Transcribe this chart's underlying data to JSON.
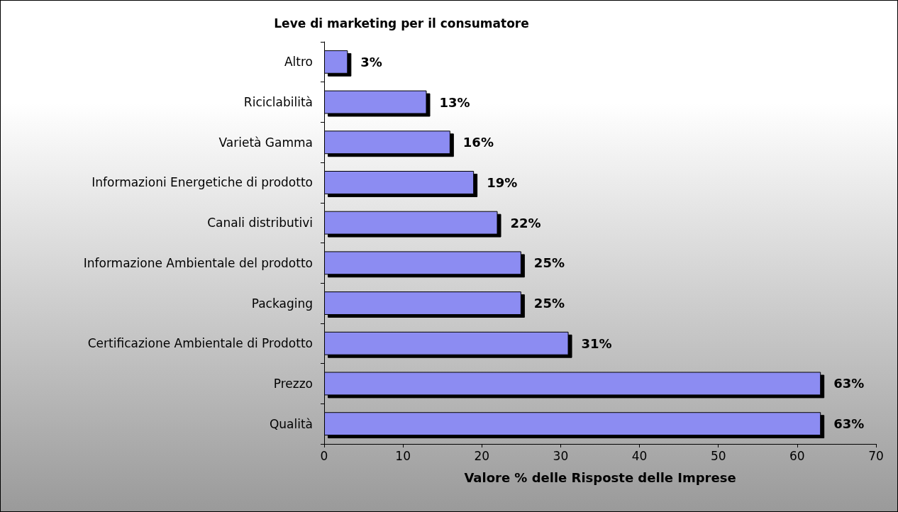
{
  "chart_data": {
    "type": "bar",
    "orientation": "horizontal",
    "title": "Leve di marketing per il consumatore",
    "xlabel": "Valore % delle Risposte delle Imprese",
    "categories": [
      "Altro",
      "Riciclabilità",
      "Varietà Gamma",
      "Informazioni Energetiche di prodotto",
      "Canali distributivi",
      "Informazione Ambientale del prodotto",
      "Packaging",
      "Certificazione Ambientale di Prodotto",
      "Prezzo",
      "Qualità"
    ],
    "values": [
      3,
      13,
      16,
      19,
      22,
      25,
      25,
      31,
      63,
      63
    ],
    "value_labels": [
      "3%",
      "13%",
      "16%",
      "19%",
      "22%",
      "25%",
      "25%",
      "31%",
      "63%",
      "63%"
    ],
    "color": "#8c8cf2",
    "xlim": [
      0,
      70
    ],
    "xticks": [
      0,
      10,
      20,
      30,
      40,
      50,
      60,
      70
    ],
    "grid": false
  }
}
